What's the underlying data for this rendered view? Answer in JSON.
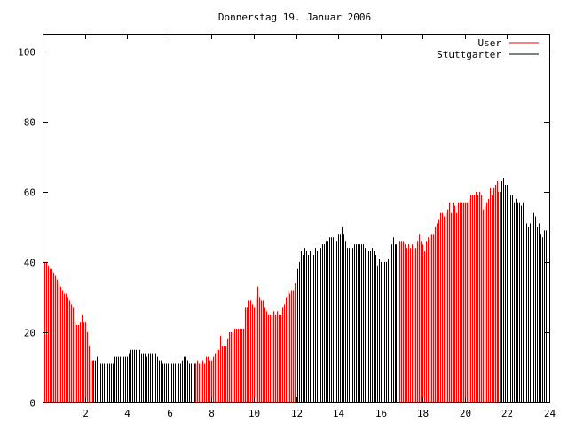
{
  "chart_data": {
    "type": "bar",
    "title": "Donnerstag 19. Januar 2006",
    "xlabel": "",
    "ylabel": "",
    "xlim": [
      0,
      24
    ],
    "ylim": [
      0,
      105
    ],
    "x_ticks": [
      2,
      4,
      6,
      8,
      10,
      12,
      14,
      16,
      18,
      20,
      22,
      24
    ],
    "y_ticks": [
      0,
      20,
      40,
      60,
      80,
      100
    ],
    "grid": false,
    "legend_position": "top-right",
    "x_step_hours": 0.08333,
    "series": [
      {
        "name": "User",
        "color": "#ff0000"
      },
      {
        "name": "Stuttgarter",
        "color": "#000000"
      }
    ],
    "segments": [
      {
        "series": "User",
        "from_index": 0,
        "to_index": 28
      },
      {
        "series": "Stuttgarter",
        "from_index": 29,
        "to_index": 86
      },
      {
        "series": "User",
        "from_index": 87,
        "to_index": 144
      },
      {
        "series": "Stuttgarter",
        "from_index": 145,
        "to_index": 202
      },
      {
        "series": "User",
        "from_index": 203,
        "to_index": 260
      },
      {
        "series": "Stuttgarter",
        "from_index": 261,
        "to_index": 287
      }
    ],
    "values": [
      44,
      40,
      40,
      39,
      38,
      38,
      37,
      36,
      35,
      34,
      33,
      32,
      31,
      31,
      30,
      29,
      28,
      27,
      23,
      22,
      22,
      23,
      25,
      23,
      23,
      20,
      16,
      12,
      12,
      12,
      12,
      13,
      12,
      11,
      11,
      11,
      11,
      11,
      11,
      11,
      11,
      13,
      13,
      13,
      13,
      13,
      13,
      13,
      13,
      14,
      15,
      15,
      15,
      15,
      16,
      15,
      14,
      14,
      14,
      13,
      14,
      14,
      14,
      14,
      14,
      13,
      12,
      12,
      11,
      11,
      11,
      11,
      11,
      11,
      11,
      11,
      12,
      11,
      11,
      12,
      13,
      13,
      12,
      11,
      11,
      11,
      11,
      11,
      12,
      11,
      11,
      12,
      11,
      13,
      13,
      12,
      12,
      13,
      14,
      15,
      15,
      19,
      16,
      16,
      16,
      18,
      20,
      20,
      20,
      21,
      21,
      21,
      21,
      21,
      21,
      27,
      27,
      29,
      29,
      28,
      27,
      30,
      33,
      30,
      29,
      29,
      27,
      26,
      25,
      25,
      25,
      26,
      25,
      26,
      25,
      25,
      27,
      28,
      30,
      32,
      31,
      32,
      32,
      34,
      35,
      38,
      40,
      43,
      42,
      44,
      43,
      42,
      43,
      43,
      42,
      44,
      43,
      43,
      44,
      45,
      45,
      46,
      46,
      47,
      47,
      47,
      46,
      46,
      48,
      48,
      50,
      48,
      46,
      44,
      44,
      45,
      44,
      45,
      45,
      45,
      45,
      45,
      45,
      44,
      43,
      43,
      43,
      44,
      43,
      42,
      39,
      41,
      40,
      42,
      40,
      40,
      41,
      43,
      45,
      47,
      45,
      45,
      44,
      46,
      46,
      46,
      45,
      44,
      45,
      44,
      45,
      44,
      44,
      46,
      48,
      46,
      45,
      43,
      46,
      47,
      48,
      48,
      48,
      50,
      51,
      52,
      54,
      54,
      53,
      54,
      55,
      57,
      54,
      57,
      56,
      54,
      57,
      57,
      57,
      57,
      57,
      57,
      58,
      59,
      59,
      59,
      60,
      59,
      60,
      59,
      55,
      56,
      57,
      58,
      61,
      59,
      61,
      62,
      63,
      60,
      60,
      63,
      64,
      62,
      62,
      60,
      59,
      59,
      57,
      58,
      57,
      57,
      56,
      57,
      53,
      51,
      50,
      51,
      54,
      54,
      53,
      50,
      51,
      48,
      47,
      49,
      49,
      48
    ]
  }
}
